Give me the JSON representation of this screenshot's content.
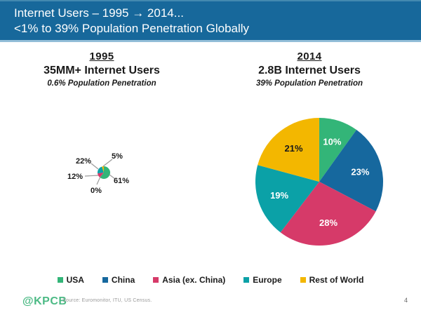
{
  "header": {
    "title_line1": "Internet Users – 1995 → 2014...",
    "title_line2": "<1% to 39% Population Penetration Globally",
    "background_color": "#17689b",
    "text_color": "#ffffff"
  },
  "panels": {
    "left": {
      "year": "1995",
      "users": "35MM+ Internet Users",
      "penetration": "0.6% Population Penetration"
    },
    "right": {
      "year": "2014",
      "users": "2.8B Internet Users",
      "penetration": "39% Population Penetration"
    }
  },
  "chart_data": [
    {
      "type": "pie",
      "title": "1995 — 35MM+ Internet Users, 0.6% population penetration",
      "labels": [
        "USA",
        "China",
        "Asia (ex. China)",
        "Europe",
        "Rest of World"
      ],
      "values": [
        61,
        0,
        12,
        22,
        5
      ],
      "unit": "%",
      "colors": [
        "#33b578",
        "#16689e",
        "#d63a69",
        "#0ba1a7",
        "#f3b700"
      ],
      "label_placement": "outside",
      "start_angle": "top",
      "direction": "clockwise"
    },
    {
      "type": "pie",
      "title": "2014 — 2.8B Internet Users, 39% population penetration",
      "labels": [
        "USA",
        "China",
        "Asia (ex. China)",
        "Europe",
        "Rest of World"
      ],
      "values": [
        10,
        23,
        28,
        19,
        21
      ],
      "unit": "%",
      "colors": [
        "#33b578",
        "#16689e",
        "#d63a69",
        "#0ba1a7",
        "#f3b700"
      ],
      "label_colors": [
        "#ffffff",
        "#ffffff",
        "#ffffff",
        "#ffffff",
        "#1a1a1a"
      ],
      "label_placement": "inside",
      "start_angle": "top",
      "direction": "clockwise"
    }
  ],
  "legend": {
    "position": "bottom"
  },
  "footer": {
    "logo": "@KPCB",
    "logo_color": "#4cba85",
    "source": "Source: Euromonitor, ITU, US Census.",
    "page": "4"
  }
}
